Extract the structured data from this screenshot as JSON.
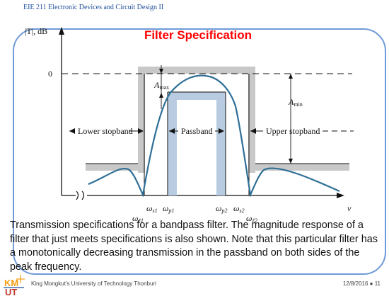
{
  "header": {
    "course_title": "EIE 211 Electronic Devices and Circuit Design II"
  },
  "figure": {
    "title": "Filter Specification",
    "y_axis_label": "|T|, dB",
    "x_axis_label": "ν",
    "zero_label": "0",
    "lower_stopband": "Lower stopband",
    "passband": "Passband",
    "upper_stopband": "Upper stopband",
    "a_max": "A",
    "a_max_sub": "max",
    "a_min": "A",
    "a_min_sub": "min",
    "ticks": {
      "ws1": "ω",
      "ws1_sub": "s1",
      "wp1": "ω",
      "wp1_sub": "p1",
      "wp2": "ω",
      "wp2_sub": "p2",
      "ws2": "ω",
      "ws2_sub": "s2",
      "wl1": "ω",
      "wl1_sub": "ℓ1",
      "wl2": "ω",
      "wl2_sub": "ℓ2"
    }
  },
  "caption": "Transmission specifications for a bandpass filter.  The magnitude response of a filter that just meets specifications is also shown.  Note that this particular filter has a monotonically decreasing transmission in the passband on both sides of the peak frequency.",
  "footer": {
    "institution": "King Mongkut's University of Technology Thonburi",
    "date_page": "12/8/2016 ● 11",
    "logo_text": "KMUTT"
  },
  "colors": {
    "accent": "#6f9bd8",
    "response_curve": "#2f6f96",
    "spec_gray": "#c8c8c8",
    "passband_fill": "#b8cbe0",
    "title": "#ff0000"
  }
}
